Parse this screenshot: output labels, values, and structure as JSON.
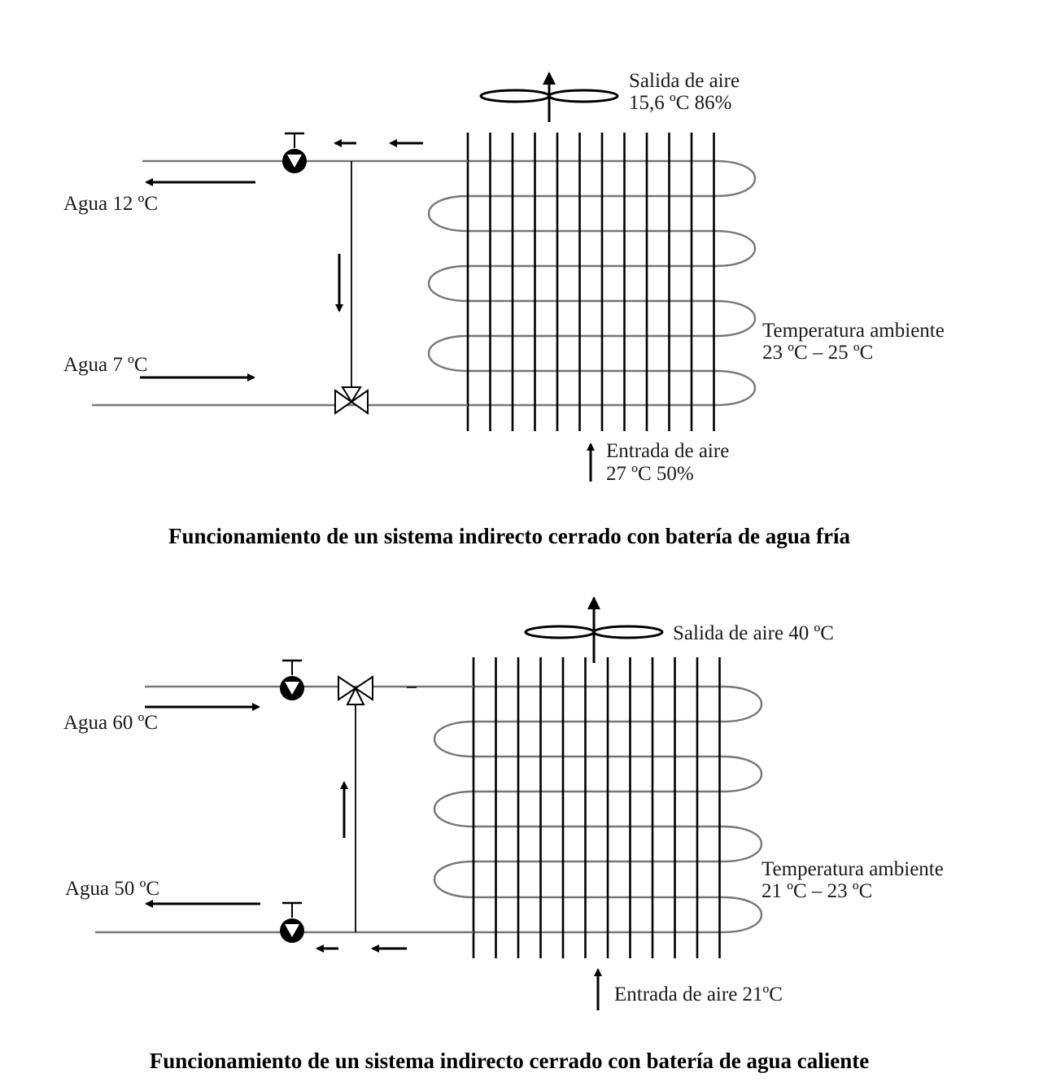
{
  "cold": {
    "air_out_line1": "Salida de aire",
    "air_out_line2": "15,6 ºC   86%",
    "water_out": "Agua  12 ºC",
    "water_in": "Agua  7 ºC",
    "ambient_line1": "Temperatura ambiente",
    "ambient_line2": "23 ºC – 25 ºC",
    "air_in_line1": "Entrada de aire",
    "air_in_line2": "27 ºC  50%",
    "caption": "Funcionamiento de un sistema indirecto cerrado con batería de agua fría"
  },
  "hot": {
    "air_out": "Salida de aire 40 ºC",
    "water_in": "Agua  60 ºC",
    "water_out": "Agua  50 ºC",
    "ambient_line1": "Temperatura ambiente",
    "ambient_line2": "21 ºC – 23 ºC",
    "air_in": "Entrada de aire 21ºC",
    "caption": "Funcionamiento de un sistema indirecto cerrado con batería de agua caliente"
  }
}
